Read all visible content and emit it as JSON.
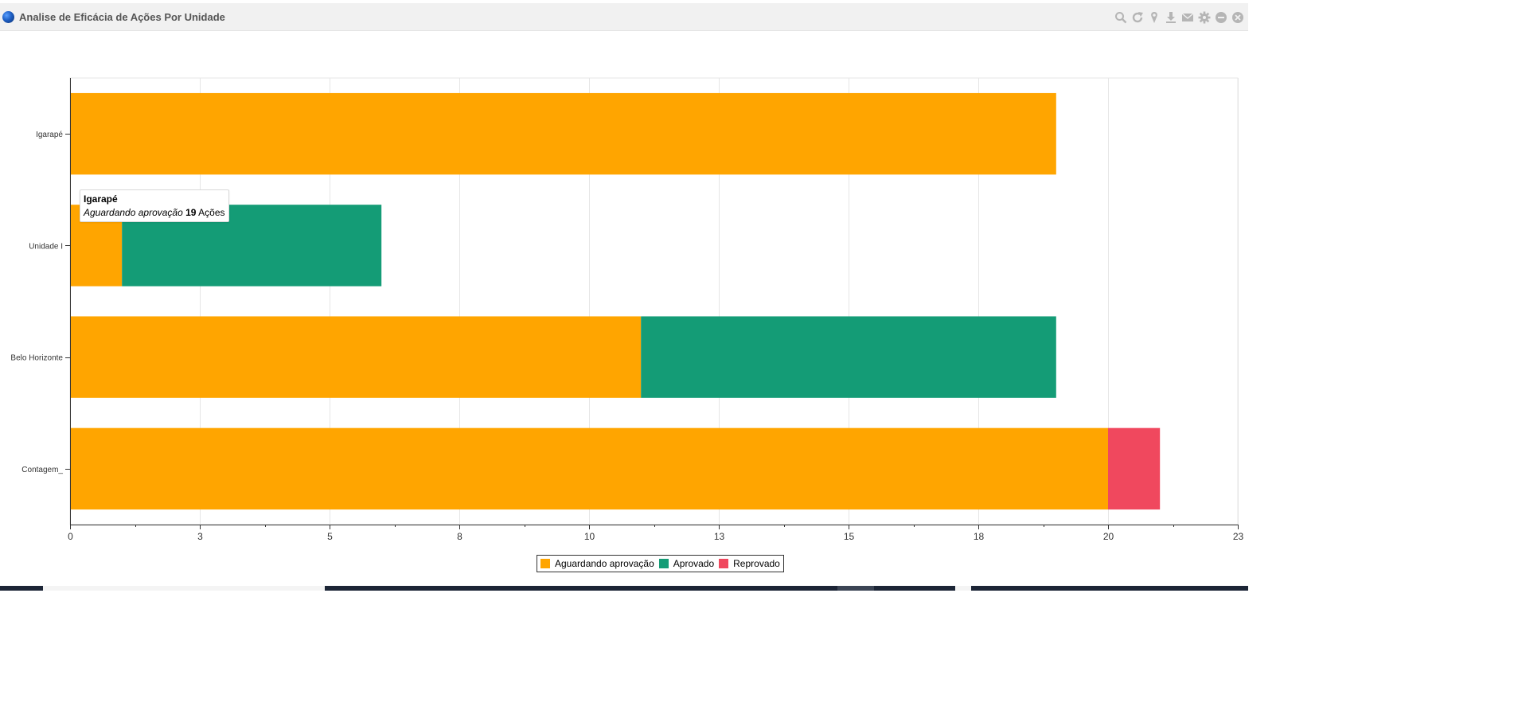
{
  "window": {
    "title": "Analise de Eficácia de Ações Por Unidade",
    "tools": [
      {
        "name": "zoom-icon"
      },
      {
        "name": "refresh-icon"
      },
      {
        "name": "pin-icon"
      },
      {
        "name": "download-icon"
      },
      {
        "name": "mail-icon"
      },
      {
        "name": "settings-icon"
      },
      {
        "name": "minimize-icon"
      },
      {
        "name": "close-icon"
      }
    ]
  },
  "tooltip": {
    "title": "Igarapé",
    "series": "Aguardando aprovação",
    "value": "19",
    "unit": "Ações"
  },
  "legend": [
    {
      "label": "Aguardando aprovação",
      "color": "#ffa500"
    },
    {
      "label": "Aprovado",
      "color": "#149c76"
    },
    {
      "label": "Reprovado",
      "color": "#f0485e"
    }
  ],
  "chart_data": {
    "type": "bar",
    "orientation": "horizontal",
    "stacked": true,
    "categories": [
      "Igarapé",
      "Unidade I",
      "Belo Horizonte",
      "Contagem_"
    ],
    "series": [
      {
        "name": "Aguardando aprovação",
        "color": "#ffa500",
        "values": [
          19,
          1,
          11,
          20
        ]
      },
      {
        "name": "Aprovado",
        "color": "#149c76",
        "values": [
          0,
          5,
          8,
          0
        ]
      },
      {
        "name": "Reprovado",
        "color": "#f0485e",
        "values": [
          0,
          0,
          0,
          1
        ]
      }
    ],
    "xlim": [
      0,
      22.5
    ],
    "x_ticks": [
      0,
      2.5,
      5,
      7.5,
      10,
      12.5,
      15,
      17.5,
      20,
      22.5
    ],
    "x_tick_labels": [
      "0",
      "3",
      "5",
      "8",
      "10",
      "13",
      "15",
      "18",
      "20",
      "23"
    ],
    "grid": true,
    "legend_position": "bottom-center"
  }
}
